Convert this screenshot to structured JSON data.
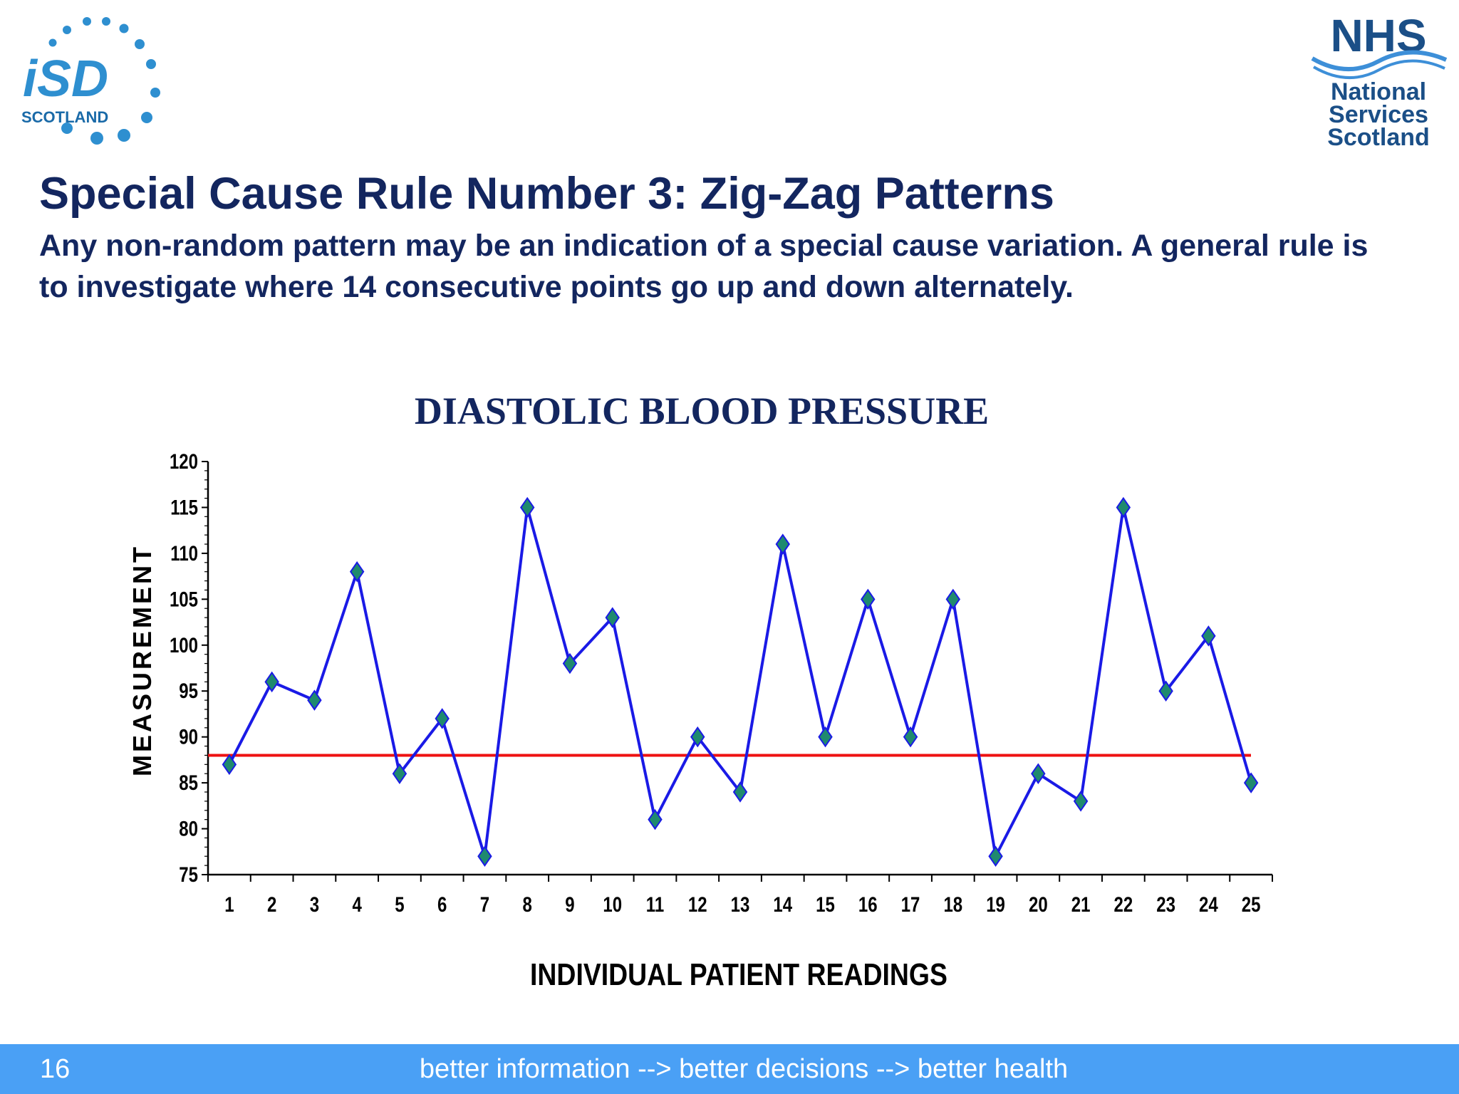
{
  "header": {
    "isd_logo": {
      "main": "iSD",
      "sub": "SCOTLAND"
    },
    "nhs_logo": {
      "main": "NHS",
      "line1": "National",
      "line2": "Services",
      "line3": "Scotland"
    }
  },
  "slide": {
    "title": "Special Cause Rule Number 3:  Zig-Zag Patterns",
    "subtitle": "Any non-random pattern may be an indication of a special cause variation.  A general rule is to investigate where 14 consecutive points go up and down alternately."
  },
  "chart_data": {
    "type": "line",
    "title": "DIASTOLIC BLOOD PRESSURE",
    "xlabel": "INDIVIDUAL PATIENT READINGS",
    "ylabel": "MEASUREMENT",
    "categories": [
      "1",
      "2",
      "3",
      "4",
      "5",
      "6",
      "7",
      "8",
      "9",
      "10",
      "11",
      "12",
      "13",
      "14",
      "15",
      "16",
      "17",
      "18",
      "19",
      "20",
      "21",
      "22",
      "23",
      "24",
      "25"
    ],
    "series": [
      {
        "name": "Diastolic",
        "values": [
          87,
          96,
          94,
          108,
          86,
          92,
          77,
          115,
          98,
          103,
          81,
          90,
          84,
          111,
          90,
          105,
          90,
          105,
          77,
          86,
          83,
          115,
          95,
          101,
          85
        ]
      }
    ],
    "reference_line": 88,
    "ylim": [
      75,
      120
    ],
    "yticks": [
      75,
      80,
      85,
      90,
      95,
      100,
      105,
      110,
      115,
      120
    ],
    "colors": {
      "line": "#1a1ae6",
      "marker_fill": "#1f8a6e",
      "marker_stroke": "#1a1ae6",
      "reference": "#ee1111",
      "text": "#13265f"
    }
  },
  "footer": {
    "page_number": "16",
    "tagline": "better information --> better decisions --> better health"
  }
}
